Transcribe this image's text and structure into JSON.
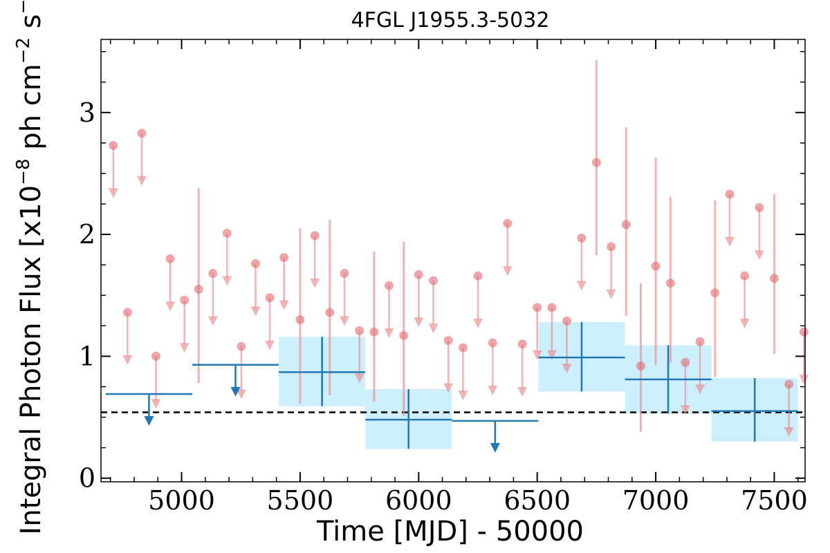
{
  "chart_data": {
    "type": "scatter",
    "title": "4FGL J1955.3-5032",
    "xlabel": "Time [MJD] - 50000",
    "ylabel": "Integral Photon Flux [x10",
    "ylabel_exp1": "−8",
    "ylabel_mid": " ph cm",
    "ylabel_exp2": "−2",
    "ylabel_mid2": " s",
    "ylabel_exp3": "−1",
    "ylabel_end": "]",
    "xlim": [
      4660,
      7630
    ],
    "ylim": [
      -0.03,
      3.6
    ],
    "x_ticks": [
      5000,
      5500,
      6000,
      6500,
      7000,
      7500
    ],
    "x_tick_labels": [
      "5000",
      "5500",
      "6000",
      "6500",
      "7000",
      "7500"
    ],
    "y_ticks": [
      0,
      1,
      2,
      3
    ],
    "y_tick_labels": [
      "0",
      "1",
      "2",
      "3"
    ],
    "baseline": 0.54,
    "colors": {
      "fine": "#e88a8f",
      "coarse": "#1f77b4",
      "band": "#cdeefc",
      "baseline": "#000000"
    },
    "coarse_bins": [
      {
        "x0": 4680,
        "x1": 5045,
        "y": 0.69,
        "upper_limit": true
      },
      {
        "x0": 5045,
        "x1": 5410,
        "y": 0.93,
        "upper_limit": true
      },
      {
        "x0": 5410,
        "x1": 5775,
        "y": 0.87,
        "lo": 0.59,
        "hi": 1.16,
        "upper_limit": false
      },
      {
        "x0": 5775,
        "x1": 6140,
        "y": 0.48,
        "lo": 0.24,
        "hi": 0.73,
        "upper_limit": false
      },
      {
        "x0": 6140,
        "x1": 6505,
        "y": 0.47,
        "upper_limit": true
      },
      {
        "x0": 6505,
        "x1": 6870,
        "y": 0.99,
        "lo": 0.71,
        "hi": 1.28,
        "upper_limit": false
      },
      {
        "x0": 6870,
        "x1": 7235,
        "y": 0.81,
        "lo": 0.53,
        "hi": 1.09,
        "upper_limit": false
      },
      {
        "x0": 7235,
        "x1": 7600,
        "y": 0.55,
        "lo": 0.3,
        "hi": 0.82,
        "upper_limit": false
      }
    ],
    "fine_points": [
      {
        "x": 4712,
        "y": 2.73,
        "upper_limit": true
      },
      {
        "x": 4772,
        "y": 1.36,
        "upper_limit": true
      },
      {
        "x": 4832,
        "y": 2.83,
        "upper_limit": true
      },
      {
        "x": 4892,
        "y": 1.0,
        "upper_limit": true
      },
      {
        "x": 4952,
        "y": 1.8,
        "upper_limit": true
      },
      {
        "x": 5012,
        "y": 1.46,
        "upper_limit": true
      },
      {
        "x": 5072,
        "y": 1.55,
        "lo": 0.78,
        "hi": 2.38,
        "upper_limit": false
      },
      {
        "x": 5132,
        "y": 1.68,
        "upper_limit": true
      },
      {
        "x": 5192,
        "y": 2.01,
        "upper_limit": true
      },
      {
        "x": 5252,
        "y": 1.08,
        "upper_limit": true
      },
      {
        "x": 5312,
        "y": 1.76,
        "upper_limit": true
      },
      {
        "x": 5372,
        "y": 1.48,
        "upper_limit": true
      },
      {
        "x": 5432,
        "y": 1.81,
        "upper_limit": true
      },
      {
        "x": 5500,
        "y": 1.3,
        "lo": 0.61,
        "hi": 2.05,
        "upper_limit": false
      },
      {
        "x": 5562,
        "y": 1.99,
        "upper_limit": true
      },
      {
        "x": 5625,
        "y": 1.36,
        "lo": 0.68,
        "hi": 2.12,
        "upper_limit": false
      },
      {
        "x": 5687,
        "y": 1.68,
        "upper_limit": true
      },
      {
        "x": 5750,
        "y": 1.21,
        "upper_limit": true
      },
      {
        "x": 5812,
        "y": 1.2,
        "lo": 0.63,
        "hi": 1.86,
        "upper_limit": false
      },
      {
        "x": 5875,
        "y": 1.58,
        "upper_limit": true
      },
      {
        "x": 5937,
        "y": 1.17,
        "lo": 0.51,
        "hi": 1.94,
        "upper_limit": false
      },
      {
        "x": 6000,
        "y": 1.67,
        "upper_limit": true
      },
      {
        "x": 6062,
        "y": 1.62,
        "upper_limit": true
      },
      {
        "x": 6125,
        "y": 1.13,
        "upper_limit": true
      },
      {
        "x": 6187,
        "y": 1.07,
        "upper_limit": true
      },
      {
        "x": 6250,
        "y": 1.66,
        "upper_limit": true
      },
      {
        "x": 6312,
        "y": 1.11,
        "upper_limit": true
      },
      {
        "x": 6375,
        "y": 2.09,
        "upper_limit": true
      },
      {
        "x": 6437,
        "y": 1.1,
        "upper_limit": true
      },
      {
        "x": 6500,
        "y": 1.4,
        "upper_limit": true
      },
      {
        "x": 6562,
        "y": 1.4,
        "upper_limit": true
      },
      {
        "x": 6625,
        "y": 1.29,
        "upper_limit": true
      },
      {
        "x": 6687,
        "y": 1.97,
        "upper_limit": true
      },
      {
        "x": 6750,
        "y": 2.59,
        "lo": 1.83,
        "hi": 3.43,
        "upper_limit": false
      },
      {
        "x": 6812,
        "y": 1.9,
        "upper_limit": true
      },
      {
        "x": 6875,
        "y": 2.08,
        "lo": 1.33,
        "hi": 2.88,
        "upper_limit": false
      },
      {
        "x": 6937,
        "y": 0.92,
        "lo": 0.38,
        "hi": 1.6,
        "upper_limit": false
      },
      {
        "x": 7000,
        "y": 1.74,
        "lo": 0.93,
        "hi": 2.63,
        "upper_limit": false
      },
      {
        "x": 7062,
        "y": 1.6,
        "lo": 0.95,
        "hi": 2.31,
        "upper_limit": false
      },
      {
        "x": 7125,
        "y": 0.95,
        "upper_limit": true
      },
      {
        "x": 7187,
        "y": 1.12,
        "upper_limit": true
      },
      {
        "x": 7250,
        "y": 1.52,
        "lo": 0.83,
        "hi": 2.28,
        "upper_limit": false
      },
      {
        "x": 7312,
        "y": 2.33,
        "upper_limit": true
      },
      {
        "x": 7375,
        "y": 1.66,
        "upper_limit": true
      },
      {
        "x": 7437,
        "y": 2.22,
        "upper_limit": true
      },
      {
        "x": 7500,
        "y": 1.64,
        "lo": 1.02,
        "hi": 2.33,
        "upper_limit": false
      },
      {
        "x": 7562,
        "y": 0.77,
        "upper_limit": true
      },
      {
        "x": 7625,
        "y": 1.2,
        "upper_limit": true
      }
    ]
  }
}
